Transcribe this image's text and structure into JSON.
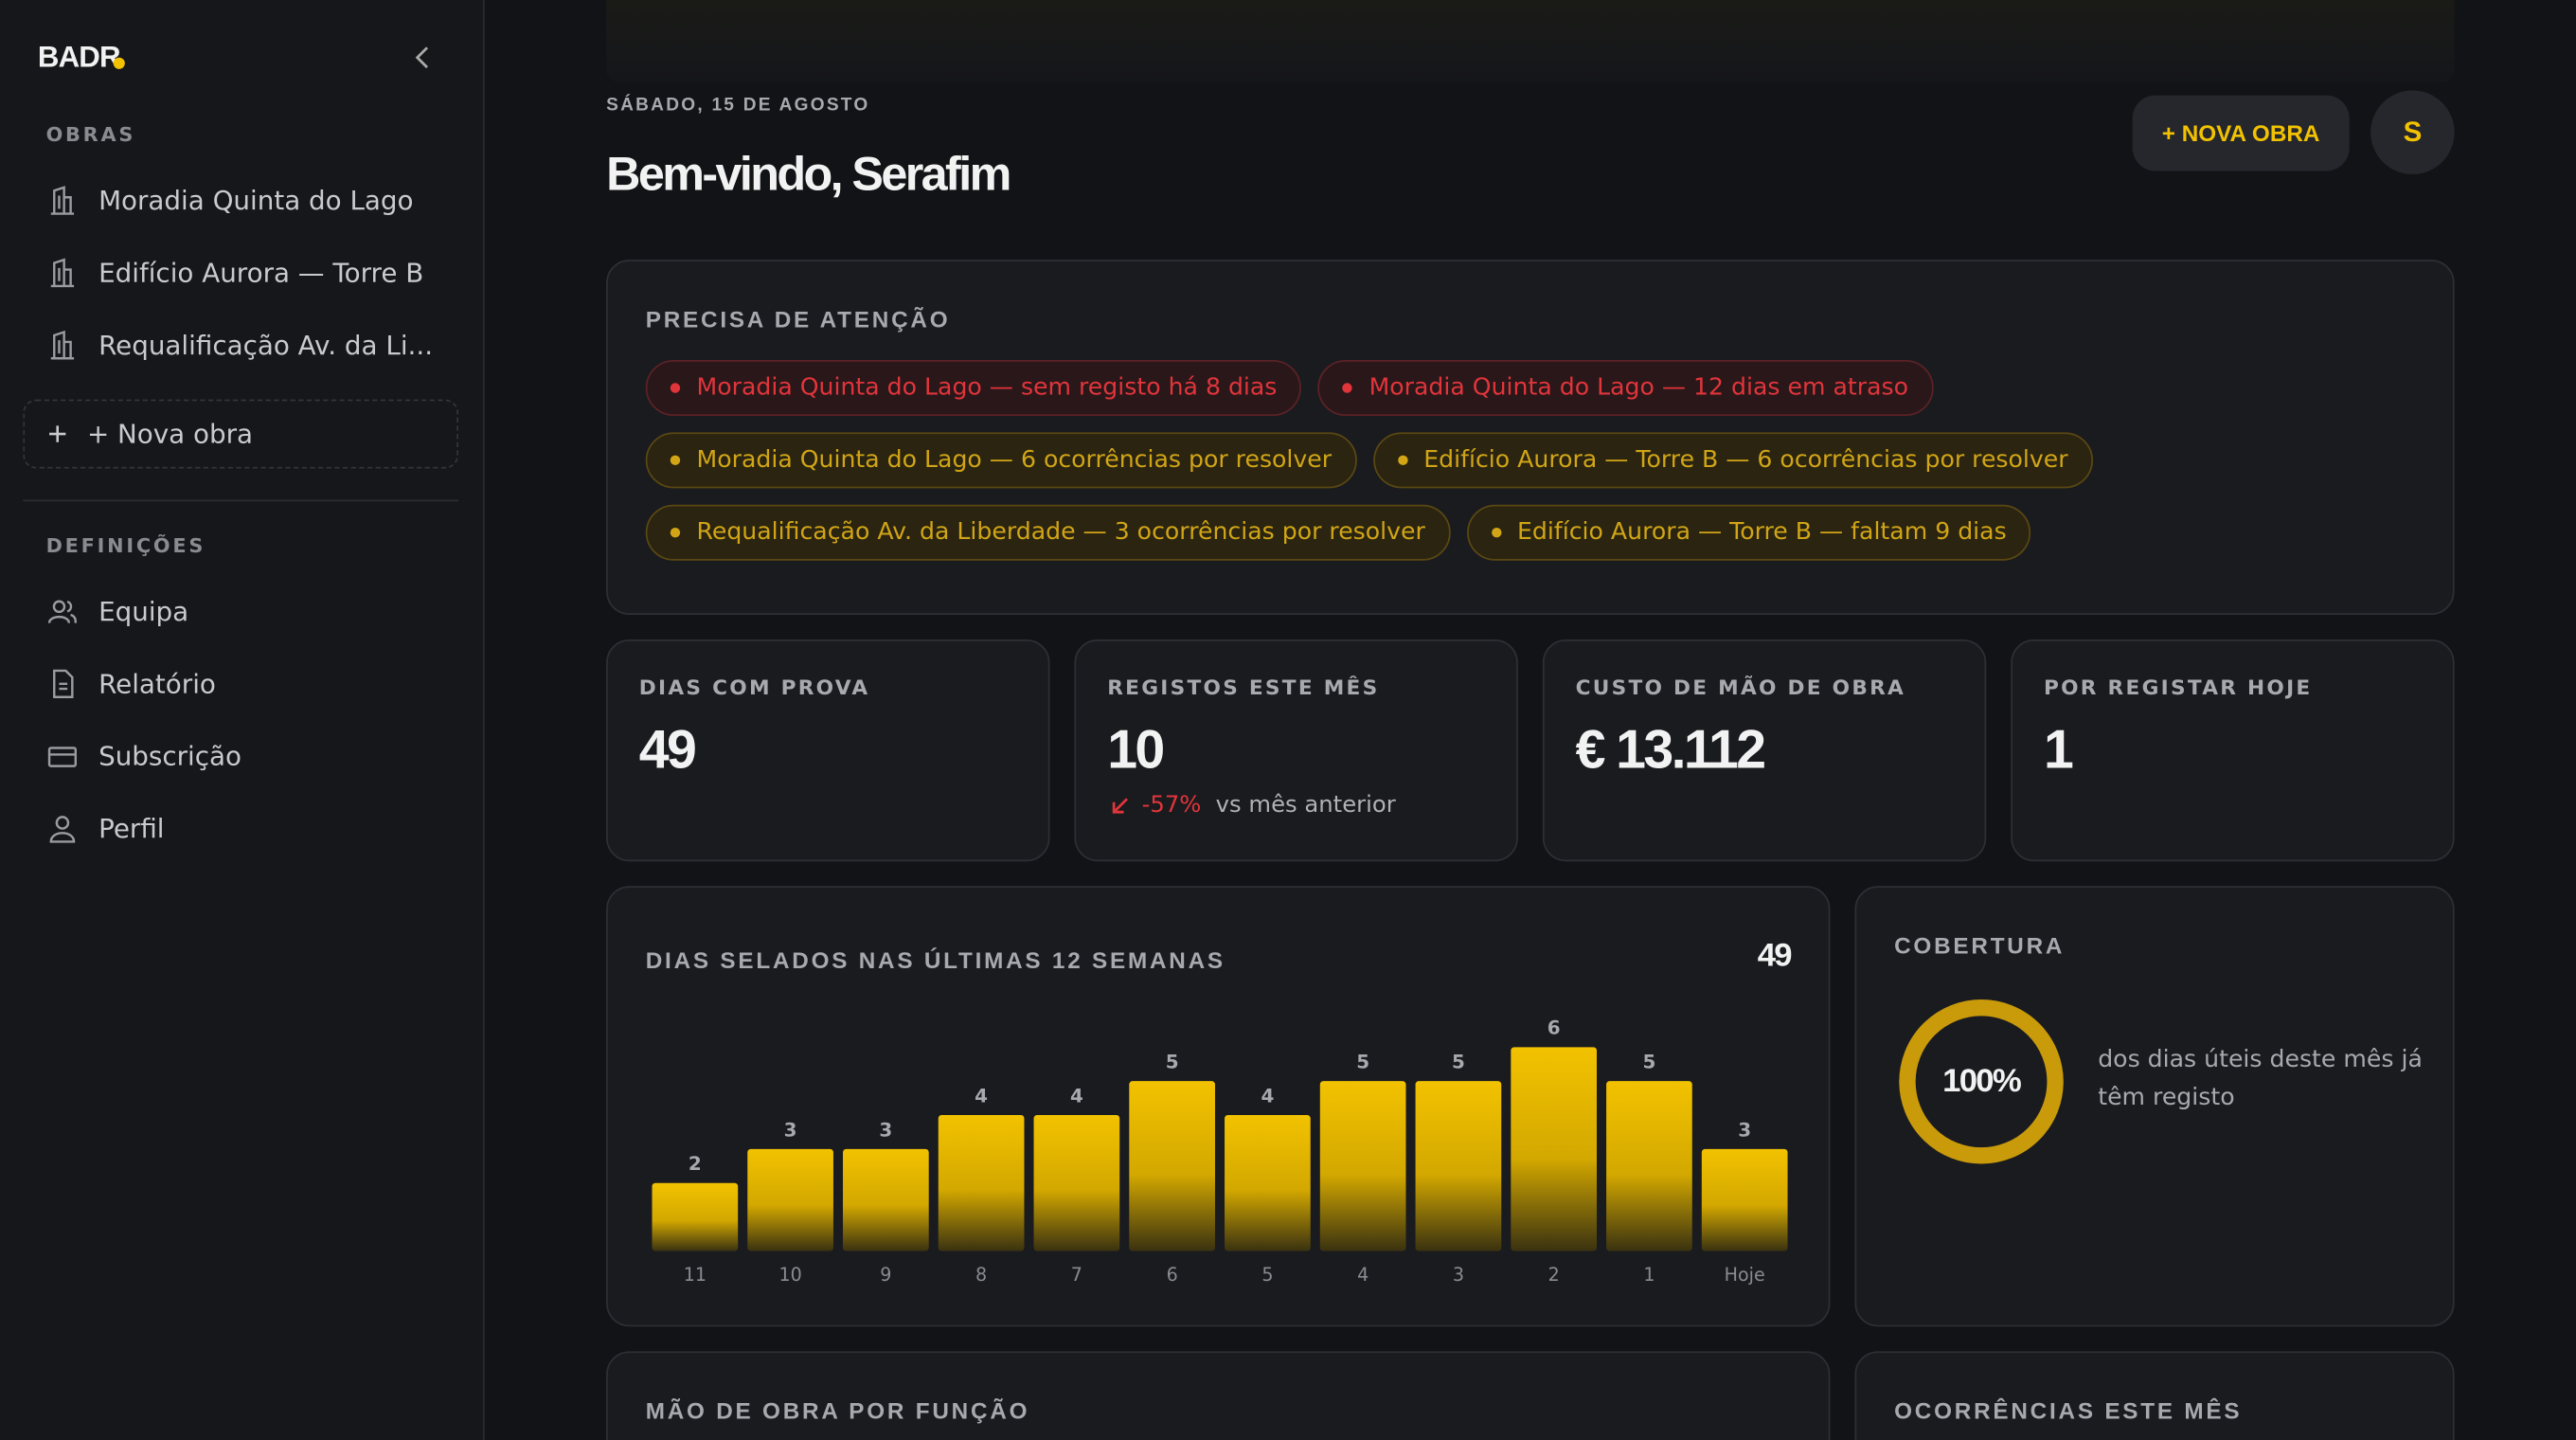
{
  "sidebar": {
    "logo": "BADR",
    "obras": {
      "title": "OBRAS",
      "items": [
        "Moradia Quinta do Lago",
        "Edifício Aurora — Torre B",
        "Requalificação Av. da Li..."
      ],
      "new_button": "+ Nova obra"
    },
    "settings": {
      "title": "DEFINIÇÕES",
      "items": [
        "Equipa",
        "Relatório",
        "Subscrição",
        "Perfil"
      ]
    }
  },
  "header": {
    "date": "SÁBADO, 15 DE AGOSTO",
    "title": "Bem-vindo, Serafim",
    "button": "+ NOVA OBRA",
    "avatar": "S"
  },
  "attention": {
    "title": "PRECISA DE ATENÇÃO",
    "alerts": [
      {
        "text": "Moradia Quinta do Lago — sem registo há 8 dias",
        "tone": "danger"
      },
      {
        "text": "Moradia Quinta do Lago — 12 dias em atraso",
        "tone": "danger"
      },
      {
        "text": "Moradia Quinta do Lago — 6 ocorrências por resolver",
        "tone": "warning"
      },
      {
        "text": "Edifício Aurora — Torre B — 6 ocorrências por resolver",
        "tone": "warning"
      },
      {
        "text": "Requalificação Av. da Liberdade — 3 ocorrências por resolver",
        "tone": "warning"
      },
      {
        "text": "Edifício Aurora — Torre B — faltam 9 dias",
        "tone": "warning"
      }
    ]
  },
  "kpis": [
    {
      "label": "DIAS COM PROVA",
      "value": "49"
    },
    {
      "label": "REGISTOS ESTE MÊS",
      "value": "10",
      "change": "-57%",
      "change_text": "vs mês anterior"
    },
    {
      "label": "CUSTO DE MÃO DE OBRA",
      "value": "€ 13.112"
    },
    {
      "label": "POR REGISTAR HOJE",
      "value": "1"
    }
  ],
  "chart_data": {
    "type": "bar",
    "title": "DIAS SELADOS NAS ÚLTIMAS 12 SEMANAS",
    "total": 49,
    "categories": [
      "11",
      "10",
      "9",
      "8",
      "7",
      "6",
      "5",
      "4",
      "3",
      "2",
      "1",
      "Hoje"
    ],
    "values": [
      2,
      3,
      3,
      4,
      4,
      5,
      4,
      5,
      5,
      6,
      5,
      3
    ],
    "color": "#f2c200"
  },
  "coverage": {
    "title": "COBERTURA",
    "value": 100,
    "value_label": "100%",
    "text": "dos dias úteis deste mês já têm registo"
  },
  "sections": [
    "MÃO DE OBRA POR FUNÇÃO",
    "OCORRÊNCIAS ESTE MÊS"
  ]
}
